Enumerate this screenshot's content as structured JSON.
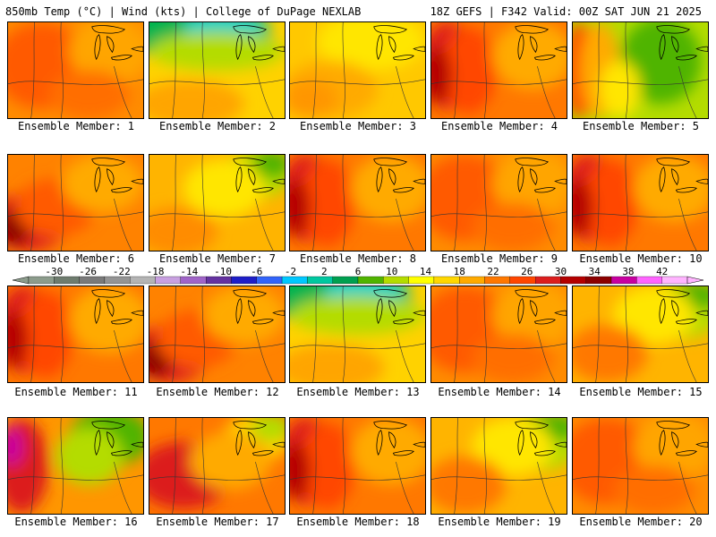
{
  "header": {
    "title_left": "850mb Temp (°C) | Wind (kts) | College of DuPage NEXLAB",
    "title_right": "18Z GEFS | F342 Valid: 00Z SAT JUN 21 2025"
  },
  "members": [
    {
      "label": "Ensemble Member: 1",
      "pattern": "warm-west"
    },
    {
      "label": "Ensemble Member: 2",
      "pattern": "cool-north"
    },
    {
      "label": "Ensemble Member: 3",
      "pattern": "mild"
    },
    {
      "label": "Ensemble Member: 4",
      "pattern": "hot-west"
    },
    {
      "label": "Ensemble Member: 5",
      "pattern": "cool-east"
    },
    {
      "label": "Ensemble Member: 6",
      "pattern": "hot-sw"
    },
    {
      "label": "Ensemble Member: 7",
      "pattern": "mild-ne"
    },
    {
      "label": "Ensemble Member: 8",
      "pattern": "hot-west"
    },
    {
      "label": "Ensemble Member: 9",
      "pattern": "warm-west"
    },
    {
      "label": "Ensemble Member: 10",
      "pattern": "hot-west"
    },
    {
      "label": "Ensemble Member: 11",
      "pattern": "hot-west"
    },
    {
      "label": "Ensemble Member: 12",
      "pattern": "hot-sw"
    },
    {
      "label": "Ensemble Member: 13",
      "pattern": "cool-north"
    },
    {
      "label": "Ensemble Member: 14",
      "pattern": "warm-west"
    },
    {
      "label": "Ensemble Member: 15",
      "pattern": "cool-ne"
    },
    {
      "label": "Ensemble Member: 16",
      "pattern": "hot-west-cool-ne"
    },
    {
      "label": "Ensemble Member: 17",
      "pattern": "warm-ne"
    },
    {
      "label": "Ensemble Member: 18",
      "pattern": "hot-west"
    },
    {
      "label": "Ensemble Member: 19",
      "pattern": "cool-ne"
    },
    {
      "label": "Ensemble Member: 20",
      "pattern": "warm-west"
    }
  ],
  "colorbar": {
    "ticks": [
      "-30",
      "-26",
      "-22",
      "-18",
      "-14",
      "-10",
      "-6",
      "-2",
      "2",
      "6",
      "10",
      "14",
      "18",
      "22",
      "26",
      "30",
      "34",
      "38",
      "42"
    ],
    "colors": [
      "#8c9c8c",
      "#6e7c6e",
      "#7a7a7a",
      "#949494",
      "#b4b4b4",
      "#c8a0e0",
      "#a064c8",
      "#6432a0",
      "#1e1ec8",
      "#3264fa",
      "#00c8ff",
      "#00c8a0",
      "#00a050",
      "#50b400",
      "#b4dc00",
      "#ffff00",
      "#ffd700",
      "#ffaa00",
      "#ff7800",
      "#ff4600",
      "#dc1e1e",
      "#b40000",
      "#8c0000",
      "#c800a0",
      "#ff64ff",
      "#ffb4ff"
    ]
  }
}
